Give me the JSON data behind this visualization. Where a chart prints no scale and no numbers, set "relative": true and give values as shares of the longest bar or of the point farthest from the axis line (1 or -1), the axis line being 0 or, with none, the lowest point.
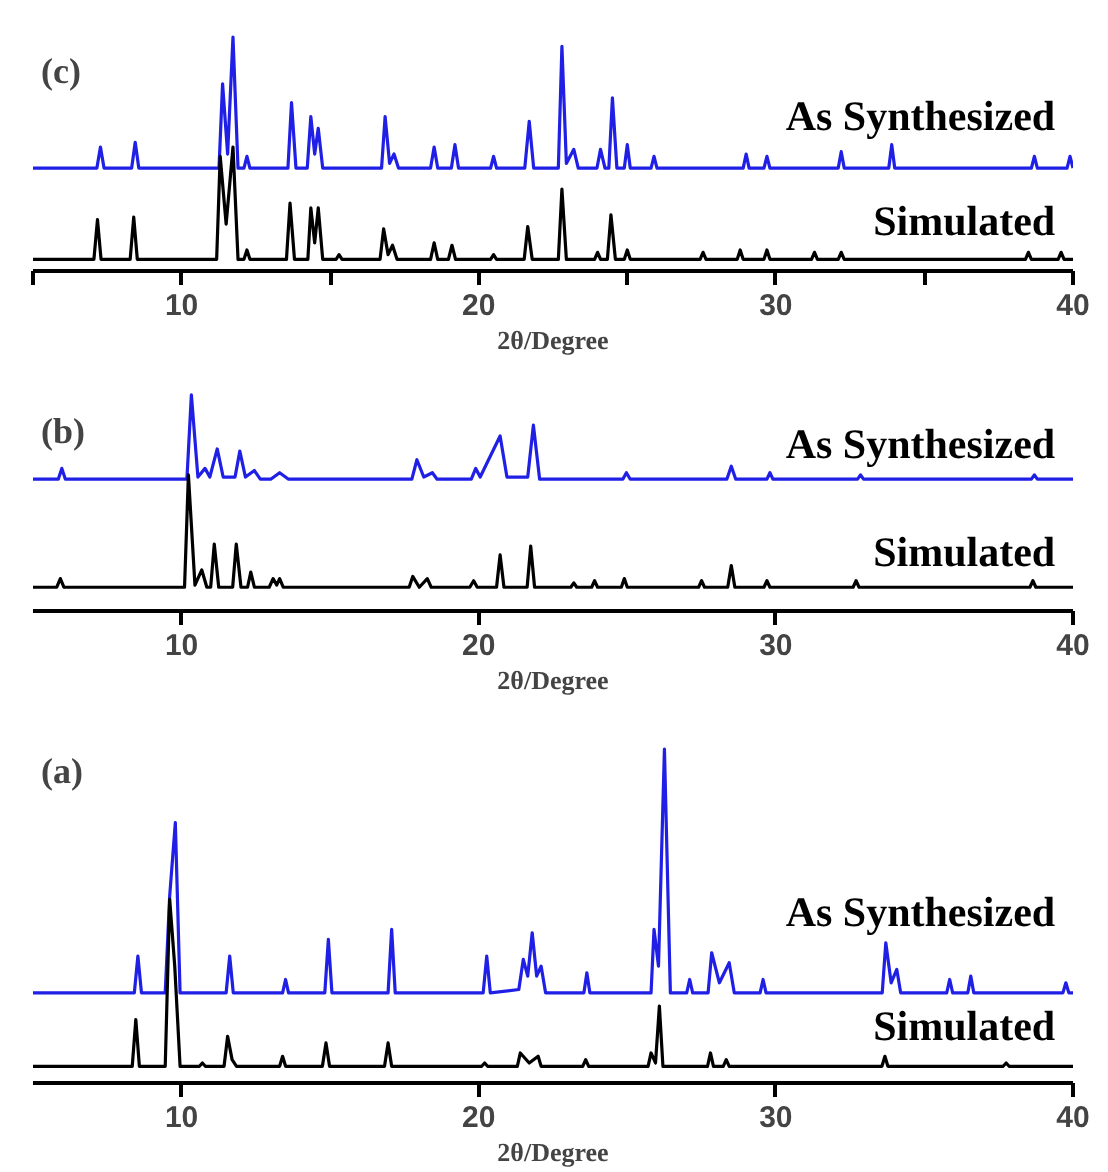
{
  "chart_data": [
    {
      "type": "line",
      "title": "(c)",
      "xlabel": "2θ/Degree",
      "relative": true,
      "xlim": [
        5,
        40
      ],
      "xticks": [
        {
          "value": 5,
          "label": null
        },
        10,
        {
          "value": 15,
          "label": null
        },
        20,
        {
          "value": 25,
          "label": null
        },
        30,
        {
          "value": 35,
          "label": null
        },
        40
      ],
      "series": [
        {
          "name": "As Synthesized",
          "color": "#1f1fe6",
          "x": [
            5,
            7.15,
            7.27,
            7.39,
            8.32,
            8.44,
            8.56,
            11.26,
            11.38,
            11.55,
            11.73,
            11.9,
            12.1,
            12.2,
            12.3,
            13.58,
            13.7,
            13.85,
            14.23,
            14.35,
            14.48,
            14.6,
            14.75,
            16.73,
            16.85,
            17.0,
            17.15,
            17.3,
            18.38,
            18.5,
            18.62,
            19.08,
            19.2,
            19.32,
            20.4,
            20.5,
            20.6,
            21.55,
            21.7,
            21.85,
            22.68,
            22.8,
            22.95,
            23.2,
            23.35,
            23.98,
            24.1,
            24.25,
            24.38,
            24.5,
            24.65,
            24.9,
            25.0,
            25.1,
            25.8,
            25.9,
            26.0,
            28.9,
            29.0,
            29.1,
            29.6,
            29.7,
            29.8,
            32.1,
            32.2,
            32.3,
            33.8,
            33.9,
            34.0,
            38.6,
            38.7,
            38.8,
            39.8,
            39.9,
            40
          ],
          "values": [
            0.44,
            0.44,
            0.53,
            0.44,
            0.44,
            0.55,
            0.44,
            0.44,
            0.8,
            0.5,
            1.0,
            0.44,
            0.44,
            0.49,
            0.44,
            0.44,
            0.72,
            0.44,
            0.44,
            0.66,
            0.5,
            0.61,
            0.44,
            0.44,
            0.66,
            0.46,
            0.5,
            0.44,
            0.44,
            0.53,
            0.44,
            0.44,
            0.54,
            0.44,
            0.44,
            0.49,
            0.44,
            0.44,
            0.64,
            0.44,
            0.44,
            0.96,
            0.46,
            0.52,
            0.44,
            0.44,
            0.52,
            0.44,
            0.44,
            0.74,
            0.44,
            0.44,
            0.54,
            0.44,
            0.44,
            0.49,
            0.44,
            0.44,
            0.5,
            0.44,
            0.44,
            0.49,
            0.44,
            0.44,
            0.51,
            0.44,
            0.44,
            0.54,
            0.44,
            0.44,
            0.49,
            0.44,
            0.44,
            0.49,
            0.44
          ]
        },
        {
          "name": "Simulated",
          "color": "#000000",
          "x": [
            5,
            7.05,
            7.17,
            7.29,
            8.27,
            8.39,
            8.51,
            11.18,
            11.3,
            11.5,
            11.73,
            11.9,
            12.1,
            12.2,
            12.3,
            13.53,
            13.65,
            13.8,
            14.25,
            14.35,
            14.48,
            14.6,
            14.75,
            15.2,
            15.3,
            15.4,
            16.68,
            16.8,
            16.95,
            17.1,
            17.25,
            18.38,
            18.5,
            18.62,
            18.98,
            19.1,
            19.22,
            20.4,
            20.5,
            20.6,
            21.53,
            21.65,
            21.8,
            22.68,
            22.8,
            22.95,
            23.9,
            24.0,
            24.1,
            24.33,
            24.45,
            24.6,
            24.9,
            25.0,
            25.1,
            27.45,
            27.55,
            27.65,
            28.7,
            28.8,
            28.9,
            29.6,
            29.7,
            29.8,
            31.2,
            31.3,
            31.4,
            32.1,
            32.2,
            32.3,
            38.4,
            38.5,
            38.6,
            39.5,
            39.6,
            39.7,
            40
          ],
          "values": [
            0.05,
            0.05,
            0.22,
            0.05,
            0.05,
            0.23,
            0.05,
            0.05,
            0.49,
            0.2,
            0.53,
            0.05,
            0.05,
            0.09,
            0.05,
            0.05,
            0.29,
            0.05,
            0.05,
            0.27,
            0.12,
            0.27,
            0.05,
            0.05,
            0.07,
            0.05,
            0.05,
            0.18,
            0.07,
            0.11,
            0.05,
            0.05,
            0.12,
            0.05,
            0.05,
            0.11,
            0.05,
            0.05,
            0.07,
            0.05,
            0.05,
            0.19,
            0.05,
            0.05,
            0.35,
            0.05,
            0.05,
            0.08,
            0.05,
            0.05,
            0.24,
            0.05,
            0.05,
            0.09,
            0.05,
            0.05,
            0.08,
            0.05,
            0.05,
            0.09,
            0.05,
            0.05,
            0.09,
            0.05,
            0.05,
            0.08,
            0.05,
            0.05,
            0.08,
            0.05,
            0.05,
            0.08,
            0.05,
            0.05,
            0.08,
            0.05,
            0.05
          ]
        }
      ]
    },
    {
      "type": "line",
      "title": "(b)",
      "xlabel": "2θ/Degree",
      "relative": true,
      "xlim": [
        5,
        40
      ],
      "xticks": [
        10,
        20,
        30,
        40
      ],
      "series": [
        {
          "name": "As Synthesized",
          "color": "#1f1fe6",
          "x": [
            5,
            5.85,
            5.97,
            6.09,
            10.18,
            10.33,
            10.55,
            10.79,
            10.95,
            11.2,
            11.4,
            11.8,
            11.96,
            12.15,
            12.45,
            12.65,
            13.0,
            13.3,
            13.6,
            17.75,
            17.92,
            18.15,
            18.44,
            18.6,
            19.75,
            19.9,
            20.05,
            20.72,
            20.95,
            21.65,
            21.84,
            22.05,
            24.85,
            24.97,
            25.1,
            28.35,
            28.5,
            28.65,
            29.7,
            29.8,
            29.9,
            32.75,
            32.85,
            32.95,
            38.6,
            38.7,
            38.8,
            40
          ],
          "values": [
            0.61,
            0.61,
            0.66,
            0.61,
            0.61,
            1.0,
            0.62,
            0.66,
            0.62,
            0.75,
            0.62,
            0.62,
            0.74,
            0.62,
            0.65,
            0.61,
            0.61,
            0.64,
            0.61,
            0.61,
            0.7,
            0.62,
            0.64,
            0.61,
            0.61,
            0.66,
            0.62,
            0.81,
            0.62,
            0.62,
            0.86,
            0.61,
            0.61,
            0.64,
            0.61,
            0.61,
            0.67,
            0.61,
            0.61,
            0.64,
            0.61,
            0.61,
            0.63,
            0.61,
            0.61,
            0.63,
            0.61,
            0.61
          ]
        },
        {
          "name": "Simulated",
          "color": "#000000",
          "x": [
            5,
            5.8,
            5.92,
            6.04,
            10.1,
            10.23,
            10.45,
            10.68,
            10.85,
            10.98,
            11.1,
            11.25,
            11.72,
            11.84,
            12.0,
            12.22,
            12.33,
            12.45,
            12.95,
            13.08,
            13.2,
            13.3,
            13.42,
            17.66,
            17.78,
            18.0,
            18.27,
            18.4,
            19.7,
            19.83,
            19.95,
            20.6,
            20.72,
            20.85,
            21.63,
            21.75,
            21.88,
            23.1,
            23.2,
            23.3,
            23.8,
            23.9,
            24.0,
            24.8,
            24.9,
            25.0,
            27.4,
            27.5,
            27.6,
            28.38,
            28.5,
            28.62,
            29.6,
            29.7,
            29.8,
            32.6,
            32.7,
            32.8,
            38.55,
            38.65,
            38.75,
            40
          ],
          "values": [
            0.11,
            0.11,
            0.15,
            0.11,
            0.11,
            0.63,
            0.12,
            0.19,
            0.11,
            0.11,
            0.31,
            0.11,
            0.11,
            0.31,
            0.11,
            0.11,
            0.18,
            0.11,
            0.11,
            0.15,
            0.12,
            0.15,
            0.11,
            0.11,
            0.16,
            0.11,
            0.15,
            0.11,
            0.11,
            0.14,
            0.11,
            0.11,
            0.26,
            0.11,
            0.11,
            0.3,
            0.11,
            0.11,
            0.13,
            0.11,
            0.11,
            0.14,
            0.11,
            0.11,
            0.15,
            0.11,
            0.11,
            0.14,
            0.11,
            0.11,
            0.21,
            0.11,
            0.11,
            0.14,
            0.11,
            0.11,
            0.14,
            0.11,
            0.11,
            0.14,
            0.11,
            0.11
          ]
        }
      ]
    },
    {
      "type": "line",
      "title": "(a)",
      "xlabel": "2θ/Degree",
      "relative": true,
      "xlim": [
        5,
        40
      ],
      "xticks": [
        10,
        20,
        30,
        40
      ],
      "series": [
        {
          "name": "As Synthesized",
          "color": "#1f1fe6",
          "x": [
            5,
            8.41,
            8.53,
            8.65,
            9.45,
            9.6,
            9.79,
            9.95,
            11.5,
            11.62,
            11.74,
            13.4,
            13.5,
            13.6,
            14.82,
            14.94,
            15.06,
            16.95,
            17.07,
            17.19,
            20.15,
            20.27,
            20.39,
            21.35,
            21.5,
            21.65,
            21.8,
            21.95,
            22.1,
            22.25,
            23.54,
            23.64,
            23.74,
            25.8,
            25.9,
            26.05,
            26.25,
            26.45,
            27.0,
            27.1,
            27.2,
            27.72,
            27.84,
            28.1,
            28.43,
            28.6,
            29.47,
            29.57,
            29.67,
            33.58,
            33.7,
            33.88,
            34.07,
            34.2,
            35.75,
            35.85,
            35.95,
            36.46,
            36.56,
            36.66,
            39.66,
            39.76,
            39.86,
            40
          ],
          "values": [
            0.27,
            0.27,
            0.38,
            0.27,
            0.27,
            0.56,
            0.78,
            0.27,
            0.27,
            0.38,
            0.27,
            0.27,
            0.31,
            0.27,
            0.27,
            0.43,
            0.27,
            0.27,
            0.46,
            0.27,
            0.27,
            0.38,
            0.27,
            0.28,
            0.37,
            0.32,
            0.45,
            0.32,
            0.35,
            0.27,
            0.27,
            0.33,
            0.27,
            0.27,
            0.46,
            0.35,
            1.0,
            0.27,
            0.27,
            0.31,
            0.27,
            0.27,
            0.39,
            0.3,
            0.36,
            0.27,
            0.27,
            0.31,
            0.27,
            0.27,
            0.42,
            0.3,
            0.34,
            0.27,
            0.27,
            0.31,
            0.27,
            0.27,
            0.32,
            0.27,
            0.27,
            0.3,
            0.27,
            0.27
          ]
        },
        {
          "name": "Simulated",
          "color": "#000000",
          "x": [
            5,
            8.34,
            8.46,
            8.58,
            9.45,
            9.6,
            9.77,
            9.95,
            10.6,
            10.7,
            10.8,
            11.43,
            11.55,
            11.7,
            11.85,
            13.3,
            13.4,
            13.5,
            14.74,
            14.86,
            14.98,
            16.83,
            16.95,
            17.07,
            20.1,
            20.2,
            20.3,
            21.3,
            21.4,
            21.7,
            22.0,
            22.1,
            23.5,
            23.6,
            23.7,
            25.7,
            25.8,
            25.95,
            26.08,
            26.2,
            27.7,
            27.8,
            27.9,
            28.23,
            28.33,
            28.43,
            33.57,
            33.67,
            33.77,
            37.65,
            37.75,
            37.85,
            40
          ],
          "values": [
            0.05,
            0.05,
            0.19,
            0.05,
            0.05,
            0.55,
            0.35,
            0.05,
            0.05,
            0.06,
            0.05,
            0.05,
            0.14,
            0.07,
            0.05,
            0.05,
            0.08,
            0.05,
            0.05,
            0.12,
            0.05,
            0.05,
            0.12,
            0.05,
            0.05,
            0.06,
            0.05,
            0.05,
            0.09,
            0.06,
            0.08,
            0.05,
            0.05,
            0.07,
            0.05,
            0.05,
            0.09,
            0.06,
            0.23,
            0.05,
            0.05,
            0.09,
            0.05,
            0.05,
            0.07,
            0.05,
            0.05,
            0.08,
            0.05,
            0.05,
            0.06,
            0.05,
            0.05
          ]
        }
      ]
    }
  ]
}
